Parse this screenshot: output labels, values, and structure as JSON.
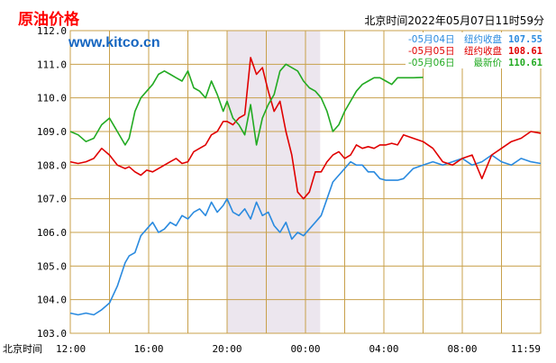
{
  "chart_data": {
    "type": "line",
    "title": "原油价格",
    "watermark": "www.kitco.cn",
    "timestamp": "北京时间2022年05月07日11时59分",
    "x_axis_prefix": "北京时间",
    "x_ticks": [
      "12:00",
      "16:00",
      "20:00",
      "00:00",
      "04:00",
      "08:00",
      "11:59"
    ],
    "y_ticks": [
      "103.0",
      "104.0",
      "105.0",
      "106.0",
      "107.0",
      "108.0",
      "109.0",
      "110.0",
      "111.0",
      "112.0"
    ],
    "ylim": [
      103.0,
      112.0
    ],
    "xlim_hours": [
      0,
      24
    ],
    "grid": true,
    "legend_position": "top-right",
    "shaded_session_hours": [
      8.0,
      12.75
    ],
    "colors": {
      "grid": "#c8a04b",
      "shade": "#ece6ee",
      "title": "#ff0000",
      "watermark": "#1565c0",
      "axis_text": "#000000"
    },
    "series": [
      {
        "legend_date": "05月04日",
        "legend_label": "纽约收盘",
        "legend_value": "107.55",
        "color": "#2a8adf",
        "x_hours": [
          0,
          0.4,
          0.8,
          1.2,
          1.6,
          2.0,
          2.4,
          2.8,
          3.0,
          3.3,
          3.6,
          3.9,
          4.2,
          4.5,
          4.8,
          5.1,
          5.4,
          5.7,
          6.0,
          6.3,
          6.6,
          6.9,
          7.2,
          7.5,
          7.8,
          8.0,
          8.3,
          8.6,
          8.9,
          9.2,
          9.5,
          9.8,
          10.1,
          10.4,
          10.7,
          11.0,
          11.3,
          11.6,
          11.9,
          12.2,
          12.5,
          12.8,
          13.1,
          13.4,
          13.7,
          14.0,
          14.3,
          14.6,
          14.9,
          15.2,
          15.5,
          15.8,
          16.1,
          16.4,
          16.7,
          17.0,
          17.5,
          18.0,
          18.5,
          19.0,
          19.5,
          20.0,
          20.5,
          21.0,
          21.5,
          22.0,
          22.5,
          23.0,
          23.5,
          24.0
        ],
        "y": [
          103.6,
          103.55,
          103.6,
          103.55,
          103.7,
          103.9,
          104.4,
          105.1,
          105.3,
          105.4,
          105.9,
          106.1,
          106.3,
          106.0,
          106.1,
          106.3,
          106.2,
          106.5,
          106.4,
          106.6,
          106.7,
          106.5,
          106.9,
          106.6,
          106.8,
          107.0,
          106.6,
          106.5,
          106.7,
          106.4,
          106.9,
          106.5,
          106.6,
          106.2,
          106.0,
          106.3,
          105.8,
          106.0,
          105.9,
          106.1,
          106.3,
          106.5,
          107.0,
          107.5,
          107.7,
          107.9,
          108.1,
          108.0,
          108.0,
          107.8,
          107.8,
          107.6,
          107.55,
          107.55,
          107.55,
          107.6,
          107.9,
          108.0,
          108.1,
          108.0,
          108.1,
          108.2,
          108.0,
          108.1,
          108.3,
          108.1,
          108.0,
          108.2,
          108.1,
          108.05
        ]
      },
      {
        "legend_date": "05月05日",
        "legend_label": "纽约收盘",
        "legend_value": "108.61",
        "color": "#e00000",
        "x_hours": [
          0,
          0.4,
          0.8,
          1.2,
          1.6,
          2.0,
          2.4,
          2.8,
          3.0,
          3.3,
          3.6,
          3.9,
          4.2,
          4.5,
          4.8,
          5.1,
          5.4,
          5.7,
          6.0,
          6.3,
          6.6,
          6.9,
          7.2,
          7.5,
          7.8,
          8.0,
          8.3,
          8.6,
          8.9,
          9.2,
          9.5,
          9.8,
          10.1,
          10.4,
          10.7,
          11.0,
          11.3,
          11.6,
          11.9,
          12.2,
          12.5,
          12.8,
          13.1,
          13.4,
          13.7,
          14.0,
          14.3,
          14.6,
          14.9,
          15.2,
          15.5,
          15.8,
          16.1,
          16.4,
          16.7,
          17.0,
          17.5,
          18.0,
          18.5,
          19.0,
          19.5,
          20.0,
          20.5,
          21.0,
          21.5,
          22.0,
          22.5,
          23.0,
          23.5,
          24.0
        ],
        "y": [
          108.1,
          108.05,
          108.1,
          108.2,
          108.5,
          108.3,
          108.0,
          107.9,
          107.95,
          107.8,
          107.7,
          107.85,
          107.8,
          107.9,
          108.0,
          108.1,
          108.2,
          108.05,
          108.1,
          108.4,
          108.5,
          108.6,
          108.9,
          109.0,
          109.3,
          109.3,
          109.2,
          109.4,
          109.5,
          111.2,
          110.7,
          110.9,
          110.2,
          109.6,
          109.9,
          109.0,
          108.3,
          107.2,
          107.0,
          107.2,
          107.8,
          107.8,
          108.1,
          108.3,
          108.4,
          108.2,
          108.3,
          108.6,
          108.5,
          108.55,
          108.5,
          108.6,
          108.6,
          108.65,
          108.6,
          108.9,
          108.8,
          108.7,
          108.5,
          108.1,
          108.0,
          108.2,
          108.3,
          107.6,
          108.3,
          108.5,
          108.7,
          108.8,
          109.0,
          108.95
        ]
      },
      {
        "legend_date": "05月06日",
        "legend_label": "最新价",
        "legend_value": "110.61",
        "color": "#22aa22",
        "x_hours": [
          0,
          0.4,
          0.8,
          1.2,
          1.6,
          2.0,
          2.4,
          2.8,
          3.0,
          3.3,
          3.6,
          3.9,
          4.2,
          4.5,
          4.8,
          5.1,
          5.4,
          5.7,
          6.0,
          6.3,
          6.6,
          6.9,
          7.2,
          7.5,
          7.8,
          8.0,
          8.3,
          8.6,
          8.9,
          9.2,
          9.5,
          9.8,
          10.1,
          10.4,
          10.7,
          11.0,
          11.3,
          11.6,
          11.9,
          12.2,
          12.5,
          12.8,
          13.1,
          13.4,
          13.7,
          14.0,
          14.3,
          14.6,
          14.9,
          15.2,
          15.5,
          15.8,
          16.1,
          16.4,
          16.7,
          17.0,
          17.5,
          18.0
        ],
        "y": [
          109.0,
          108.9,
          108.7,
          108.8,
          109.2,
          109.4,
          109.0,
          108.6,
          108.8,
          109.6,
          110.0,
          110.2,
          110.4,
          110.7,
          110.8,
          110.7,
          110.6,
          110.5,
          110.8,
          110.3,
          110.2,
          110.0,
          110.5,
          110.1,
          109.6,
          109.9,
          109.4,
          109.2,
          108.9,
          109.8,
          108.6,
          109.4,
          109.8,
          110.1,
          110.8,
          111.0,
          110.9,
          110.8,
          110.5,
          110.3,
          110.2,
          110.0,
          109.6,
          109.0,
          109.2,
          109.6,
          109.9,
          110.2,
          110.4,
          110.5,
          110.6,
          110.6,
          110.5,
          110.4,
          110.6,
          110.6,
          110.6,
          110.61
        ]
      }
    ]
  }
}
